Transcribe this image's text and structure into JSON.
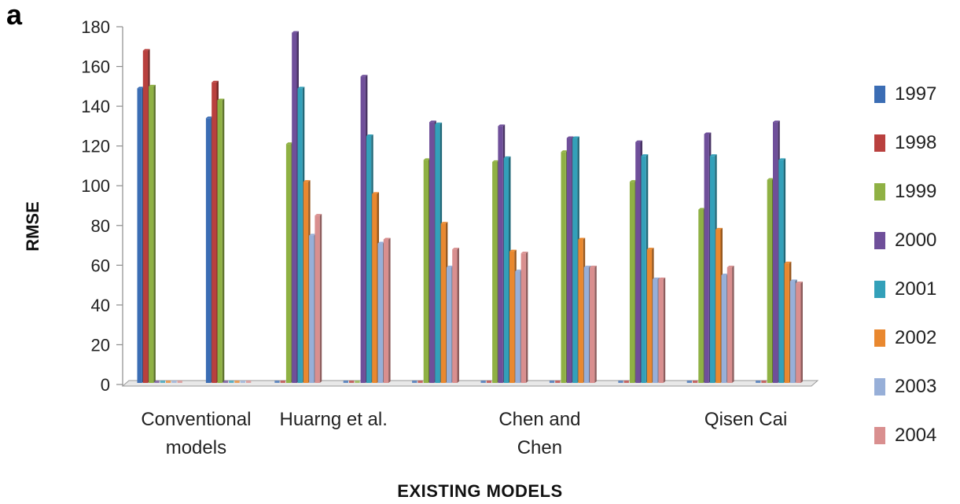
{
  "panel_label": "a",
  "chart_data": {
    "type": "bar",
    "title": "",
    "xlabel": "EXISTING  MODELS",
    "ylabel": "RMSE",
    "ylim": [
      0,
      180
    ],
    "yticks": [
      0,
      20,
      40,
      60,
      80,
      100,
      120,
      140,
      160,
      180
    ],
    "grid": false,
    "legend_position": "right",
    "categories": [
      "",
      "",
      "",
      "",
      "",
      "",
      "",
      "",
      "",
      ""
    ],
    "category_labels": [
      {
        "text": [
          "Conventional",
          "models"
        ],
        "category_index": 0.5
      },
      {
        "text": [
          "Huarng et al."
        ],
        "category_index": 2.5
      },
      {
        "text": [
          "Chen and",
          "Chen"
        ],
        "category_index": 5.5
      },
      {
        "text": [
          "Qisen Cai"
        ],
        "category_index": 8.5
      }
    ],
    "series": [
      {
        "name": "1997",
        "color": "#3b6db4",
        "values": [
          149,
          134,
          0,
          0,
          0,
          0,
          0,
          0,
          0,
          0
        ]
      },
      {
        "name": "1998",
        "color": "#b9403e",
        "values": [
          168,
          152,
          0,
          0,
          0,
          0,
          0,
          0,
          0,
          0
        ]
      },
      {
        "name": "1999",
        "color": "#8fb144",
        "values": [
          150,
          143,
          121,
          0,
          113,
          112,
          117,
          102,
          88,
          103
        ]
      },
      {
        "name": "2000",
        "color": "#6f4f9a",
        "values": [
          0,
          0,
          177,
          155,
          132,
          130,
          124,
          122,
          126,
          132
        ]
      },
      {
        "name": "2001",
        "color": "#33a0b9",
        "values": [
          0,
          0,
          149,
          125,
          131,
          114,
          124,
          115,
          115,
          113
        ]
      },
      {
        "name": "2002",
        "color": "#e9882f",
        "values": [
          0,
          0,
          102,
          96,
          81,
          67,
          73,
          68,
          78,
          61
        ]
      },
      {
        "name": "2003",
        "color": "#97afd8",
        "values": [
          0,
          0,
          75,
          71,
          59,
          57,
          59,
          53,
          55,
          52
        ]
      },
      {
        "name": "2004",
        "color": "#d98f8f",
        "values": [
          0,
          0,
          85,
          73,
          68,
          66,
          59,
          53,
          59,
          51
        ]
      }
    ]
  }
}
